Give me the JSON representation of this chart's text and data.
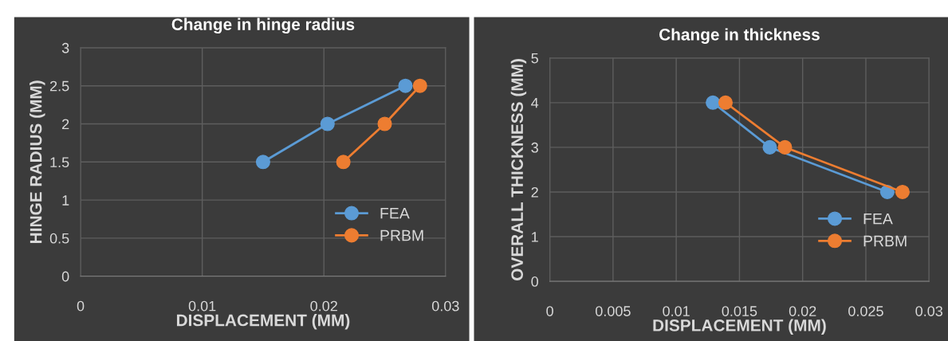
{
  "chart_data": [
    {
      "type": "line",
      "title": "Change in hinge radius",
      "xlabel": "DISPLACEMENT (MM)",
      "ylabel": "HINGE RADIUS (MM)",
      "xlim": [
        0,
        0.03
      ],
      "xticks": [
        0,
        0.01,
        0.02,
        0.03
      ],
      "ylim": [
        0,
        3
      ],
      "yticks": [
        0,
        0.5,
        1,
        1.5,
        2,
        2.5,
        3
      ],
      "grid": true,
      "legend": "bottom right",
      "marker": "circle",
      "line_style": "solid",
      "series": [
        {
          "name": "FEA",
          "color": "#5b9bd5",
          "x": [
            0.015,
            0.0203,
            0.0267
          ],
          "values": [
            1.5,
            2,
            2.5
          ]
        },
        {
          "name": "PRBM",
          "color": "#ed7d31",
          "x": [
            0.0216,
            0.025,
            0.0279
          ],
          "values": [
            1.5,
            2,
            2.5
          ]
        }
      ]
    },
    {
      "type": "line",
      "title": "Change in thickness",
      "xlabel": "DISPLACEMENT (MM)",
      "ylabel": "OVERALL THICKNESS (MM)",
      "xlim": [
        0,
        0.03
      ],
      "xticks": [
        0,
        0.005,
        0.01,
        0.015,
        0.02,
        0.025,
        0.03
      ],
      "ylim": [
        0,
        5
      ],
      "yticks": [
        0,
        1,
        2,
        3,
        4,
        5
      ],
      "grid": true,
      "legend": "bottom right",
      "marker": "circle",
      "line_style": "solid",
      "series": [
        {
          "name": "FEA",
          "color": "#5b9bd5",
          "x": [
            0.0129,
            0.0174,
            0.0267
          ],
          "values": [
            4,
            3,
            2
          ]
        },
        {
          "name": "PRBM",
          "color": "#ed7d31",
          "x": [
            0.0139,
            0.0186,
            0.0279
          ],
          "values": [
            4,
            3,
            2
          ]
        }
      ]
    }
  ]
}
